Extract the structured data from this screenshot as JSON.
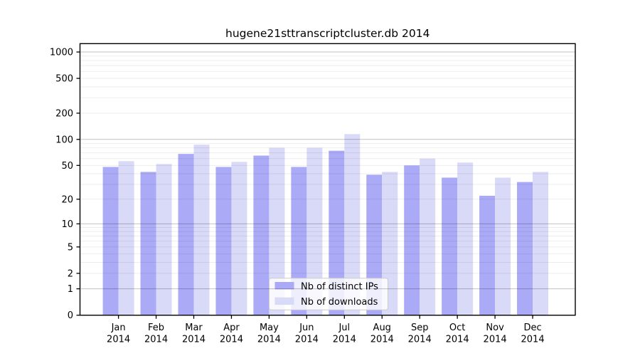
{
  "chart_data": {
    "type": "bar",
    "title": "hugene21sttranscriptcluster.db 2014",
    "months": [
      "Jan",
      "Feb",
      "Mar",
      "Apr",
      "May",
      "Jun",
      "Jul",
      "Aug",
      "Sep",
      "Oct",
      "Nov",
      "Dec"
    ],
    "year": "2014",
    "series": [
      {
        "name": "Nb of distinct IPs",
        "color": "#aaaaf6",
        "values": [
          48,
          42,
          68,
          48,
          65,
          48,
          74,
          39,
          50,
          36,
          22,
          32
        ]
      },
      {
        "name": "Nb of downloads",
        "color": "#d9d9f8",
        "values": [
          56,
          52,
          87,
          55,
          80,
          80,
          115,
          42,
          60,
          54,
          36,
          42
        ]
      }
    ],
    "y_ticks": [
      0,
      1,
      2,
      5,
      10,
      20,
      50,
      100,
      200,
      500,
      1000
    ],
    "scale": "log10(value+1)",
    "ylim": [
      0,
      1250
    ],
    "xlabel": "",
    "ylabel": "",
    "grid": true,
    "legend_position": "bottom-center",
    "colors": {
      "major_grid": "#c3c3c3",
      "minor_grid": "#ededed",
      "axis": "#000000",
      "legend_border": "#cccccc",
      "background": "#ffffff"
    }
  }
}
